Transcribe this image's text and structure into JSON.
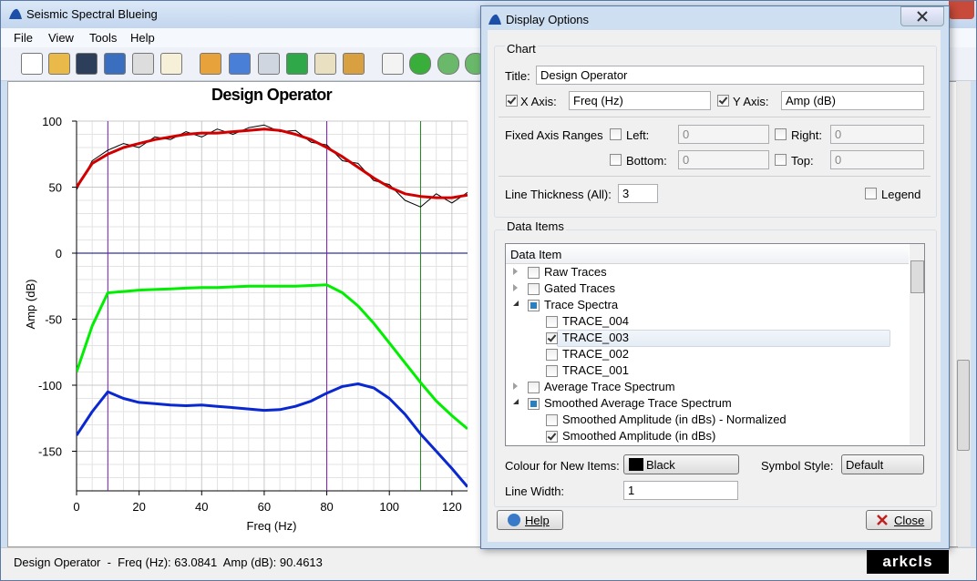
{
  "window": {
    "title": "Seismic Spectral Blueing",
    "menu": [
      "File",
      "View",
      "Tools",
      "Help"
    ]
  },
  "chart_data": {
    "type": "line",
    "title": "Design Operator",
    "x_label": "Freq (Hz)",
    "y_label": "Amp (dB)",
    "xlim": [
      0,
      125
    ],
    "ylim": [
      -180,
      100
    ],
    "xticks": [
      0,
      20,
      40,
      60,
      80,
      100,
      120
    ],
    "yticks": [
      -150,
      -100,
      -50,
      0,
      50,
      100
    ],
    "minor_xticks": [
      5,
      10,
      15,
      25,
      30,
      35,
      45,
      50,
      55,
      65,
      70,
      75,
      85,
      90,
      95,
      105,
      110,
      115,
      125
    ],
    "minor_yticks": [
      -170,
      -160,
      -140,
      -130,
      -120,
      -110,
      -90,
      -80,
      -70,
      -60,
      -40,
      -30,
      -20,
      -10,
      10,
      20,
      30,
      40,
      60,
      70,
      80,
      90
    ],
    "grid": true,
    "hlines": [
      {
        "value": 0,
        "color": "#000080"
      }
    ],
    "vlines": [
      {
        "value": 10,
        "color": "#7a1fb0"
      },
      {
        "value": 80,
        "color": "#7a1fb0"
      },
      {
        "value": 110,
        "color": "#1a8a1a"
      }
    ],
    "x": [
      0,
      5,
      10,
      15,
      20,
      25,
      30,
      35,
      40,
      45,
      50,
      55,
      60,
      65,
      70,
      75,
      80,
      85,
      90,
      95,
      100,
      105,
      110,
      115,
      120,
      125
    ],
    "series": [
      {
        "color": "#000000",
        "width": 1,
        "values": [
          48,
          70,
          78,
          83,
          80,
          88,
          86,
          92,
          88,
          94,
          90,
          95,
          97,
          92,
          93,
          84,
          82,
          70,
          68,
          55,
          52,
          40,
          35,
          45,
          38,
          46
        ]
      },
      {
        "color": "#d00000",
        "width": 3,
        "values": [
          50,
          68,
          75,
          80,
          83,
          86,
          88,
          90,
          91,
          91,
          92,
          93,
          94,
          93,
          90,
          86,
          80,
          73,
          65,
          57,
          50,
          45,
          43,
          42,
          42,
          44
        ]
      },
      {
        "color": "#00ee00",
        "width": 3,
        "values": [
          -90,
          -55,
          -30,
          -29,
          -28,
          -27.5,
          -27,
          -26.5,
          -26,
          -26,
          -25.5,
          -25,
          -25,
          -25,
          -25,
          -24.5,
          -24,
          -30,
          -40,
          -53,
          -68,
          -83,
          -98,
          -112,
          -123,
          -133
        ]
      },
      {
        "color": "#0a28d0",
        "width": 3,
        "values": [
          -138,
          -120,
          -105,
          -110,
          -113,
          -114,
          -115,
          -115.5,
          -115,
          -116,
          -117,
          -118,
          -119,
          -118.5,
          -116,
          -112,
          -106,
          -101,
          -99,
          -102,
          -110,
          -122,
          -137,
          -150,
          -163,
          -177
        ]
      }
    ]
  },
  "status": {
    "text": "Design Operator  -  Freq (Hz): 63.0841  Amp (dB): 90.4613",
    "logo": "arkcls"
  },
  "dialog": {
    "title": "Display Options",
    "chart_group": "Chart",
    "title_label": "Title:",
    "title_value": "Design Operator",
    "x_axis_label": "X Axis:",
    "x_axis_value": "Freq (Hz)",
    "y_axis_label": "Y Axis:",
    "y_axis_value": "Amp (dB)",
    "fixed_ranges": "Fixed Axis Ranges",
    "left": "Left:",
    "right": "Right:",
    "bottom": "Bottom:",
    "top": "Top:",
    "left_value": 0,
    "right_value": 0,
    "bottom_value": 0,
    "top_value": 0,
    "line_thickness_label": "Line Thickness (All):",
    "line_thickness": 3,
    "legend": "Legend",
    "data_items_group": "Data Items",
    "tree_header": "Data Item",
    "tree": [
      {
        "label": "Raw Traces",
        "level": 0,
        "expander": "collapsed",
        "check": "none"
      },
      {
        "label": "Gated Traces",
        "level": 0,
        "expander": "collapsed",
        "check": "none"
      },
      {
        "label": "Trace Spectra",
        "level": 0,
        "expander": "expanded",
        "check": "partial"
      },
      {
        "label": "TRACE_004",
        "level": 1,
        "check": "none"
      },
      {
        "label": "TRACE_003",
        "level": 1,
        "check": "checked",
        "selected": true
      },
      {
        "label": "TRACE_002",
        "level": 1,
        "check": "none"
      },
      {
        "label": "TRACE_001",
        "level": 1,
        "check": "none"
      },
      {
        "label": "Average Trace Spectrum",
        "level": 0,
        "expander": "collapsed",
        "check": "none"
      },
      {
        "label": "Smoothed Average Trace Spectrum",
        "level": 0,
        "expander": "expanded",
        "check": "partial"
      },
      {
        "label": "Smoothed Amplitude (in dBs) - Normalized",
        "level": 1,
        "check": "none"
      },
      {
        "label": "Smoothed Amplitude (in dBs)",
        "level": 1,
        "check": "checked"
      }
    ],
    "colour_label": "Colour for New Items:",
    "colour_value": "Black",
    "symbol_label": "Symbol Style:",
    "symbol_value": "Default",
    "line_width_label": "Line Width:",
    "line_width_value": 1,
    "help": "Help",
    "close": "Close"
  }
}
